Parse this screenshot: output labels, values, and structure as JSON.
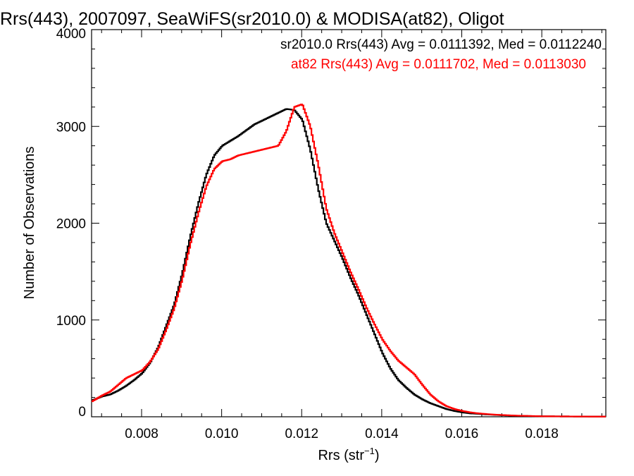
{
  "chart_data": {
    "type": "line",
    "title": "Rrs(443), 2007097, SeaWiFS(sr2010.0) & MODISA(at82), Oligot",
    "xlabel": "Rrs (str",
    "xlabel_superscript": "−1",
    "xlabel_suffix": ")",
    "ylabel": "Number of Observations",
    "xlim": [
      0.00675,
      0.0196
    ],
    "ylim": [
      0,
      4000
    ],
    "x_ticks": [
      0.008,
      0.01,
      0.012,
      0.014,
      0.016,
      0.018
    ],
    "x_tick_labels": [
      "0.008",
      "0.010",
      "0.012",
      "0.014",
      "0.016",
      "0.018"
    ],
    "y_ticks": [
      0,
      1000,
      2000,
      3000,
      4000
    ],
    "y_tick_labels": [
      "0",
      "1000",
      "2000",
      "3000",
      "4000"
    ],
    "grid": false,
    "legend_position": "top-right",
    "series": [
      {
        "name": "sr2010.0 Rrs(443) Avg = 0.0111392, Med = 0.0112240",
        "color": "#000000",
        "points": [
          [
            0.00675,
            170
          ],
          [
            0.007,
            210
          ],
          [
            0.0072,
            230
          ],
          [
            0.0074,
            270
          ],
          [
            0.0076,
            320
          ],
          [
            0.0078,
            380
          ],
          [
            0.008,
            450
          ],
          [
            0.0082,
            560
          ],
          [
            0.0084,
            720
          ],
          [
            0.0086,
            940
          ],
          [
            0.0088,
            1160
          ],
          [
            0.009,
            1480
          ],
          [
            0.0092,
            1860
          ],
          [
            0.0094,
            2200
          ],
          [
            0.0096,
            2500
          ],
          [
            0.0098,
            2700
          ],
          [
            0.01,
            2800
          ],
          [
            0.0102,
            2850
          ],
          [
            0.0104,
            2900
          ],
          [
            0.0106,
            2960
          ],
          [
            0.0108,
            3020
          ],
          [
            0.011,
            3060
          ],
          [
            0.0112,
            3100
          ],
          [
            0.0114,
            3140
          ],
          [
            0.0116,
            3180
          ],
          [
            0.0118,
            3170
          ],
          [
            0.012,
            3070
          ],
          [
            0.0122,
            2760
          ],
          [
            0.0124,
            2350
          ],
          [
            0.0126,
            2000
          ],
          [
            0.0128,
            1820
          ],
          [
            0.013,
            1640
          ],
          [
            0.0132,
            1440
          ],
          [
            0.0134,
            1260
          ],
          [
            0.0136,
            1060
          ],
          [
            0.0138,
            860
          ],
          [
            0.014,
            660
          ],
          [
            0.0142,
            500
          ],
          [
            0.0144,
            380
          ],
          [
            0.0146,
            300
          ],
          [
            0.0148,
            230
          ],
          [
            0.015,
            180
          ],
          [
            0.0152,
            140
          ],
          [
            0.0154,
            110
          ],
          [
            0.0156,
            80
          ],
          [
            0.0158,
            60
          ],
          [
            0.016,
            45
          ],
          [
            0.0162,
            35
          ],
          [
            0.0164,
            30
          ],
          [
            0.0166,
            25
          ],
          [
            0.0168,
            20
          ],
          [
            0.017,
            16
          ],
          [
            0.0172,
            12
          ],
          [
            0.0174,
            10
          ],
          [
            0.0176,
            8
          ],
          [
            0.0178,
            6
          ],
          [
            0.018,
            5
          ],
          [
            0.0184,
            4
          ],
          [
            0.0188,
            3
          ],
          [
            0.0192,
            2
          ],
          [
            0.0196,
            2
          ]
        ]
      },
      {
        "name": "at82 Rrs(443) Avg = 0.0111702, Med = 0.0113030",
        "color": "#ff0000",
        "points": [
          [
            0.00675,
            160
          ],
          [
            0.007,
            220
          ],
          [
            0.0072,
            260
          ],
          [
            0.0074,
            330
          ],
          [
            0.0076,
            400
          ],
          [
            0.0078,
            440
          ],
          [
            0.008,
            480
          ],
          [
            0.0082,
            570
          ],
          [
            0.0084,
            700
          ],
          [
            0.0086,
            900
          ],
          [
            0.0088,
            1120
          ],
          [
            0.009,
            1420
          ],
          [
            0.0092,
            1780
          ],
          [
            0.0094,
            2100
          ],
          [
            0.0096,
            2380
          ],
          [
            0.0098,
            2560
          ],
          [
            0.01,
            2640
          ],
          [
            0.0102,
            2660
          ],
          [
            0.0104,
            2700
          ],
          [
            0.0106,
            2720
          ],
          [
            0.0108,
            2740
          ],
          [
            0.011,
            2760
          ],
          [
            0.0112,
            2780
          ],
          [
            0.0114,
            2800
          ],
          [
            0.0116,
            2950
          ],
          [
            0.0118,
            3200
          ],
          [
            0.012,
            3230
          ],
          [
            0.0122,
            3000
          ],
          [
            0.0124,
            2600
          ],
          [
            0.0126,
            2150
          ],
          [
            0.0128,
            1900
          ],
          [
            0.013,
            1700
          ],
          [
            0.0132,
            1500
          ],
          [
            0.0134,
            1320
          ],
          [
            0.0136,
            1130
          ],
          [
            0.0138,
            960
          ],
          [
            0.014,
            800
          ],
          [
            0.0142,
            680
          ],
          [
            0.0144,
            580
          ],
          [
            0.0146,
            510
          ],
          [
            0.0148,
            440
          ],
          [
            0.015,
            330
          ],
          [
            0.0152,
            230
          ],
          [
            0.0154,
            160
          ],
          [
            0.0156,
            110
          ],
          [
            0.0158,
            80
          ],
          [
            0.016,
            60
          ],
          [
            0.0162,
            45
          ],
          [
            0.0164,
            35
          ],
          [
            0.0166,
            28
          ],
          [
            0.0168,
            22
          ],
          [
            0.017,
            18
          ],
          [
            0.0172,
            14
          ],
          [
            0.0174,
            11
          ],
          [
            0.0176,
            9
          ],
          [
            0.0178,
            7
          ],
          [
            0.018,
            5
          ],
          [
            0.0184,
            4
          ],
          [
            0.0188,
            3
          ],
          [
            0.0192,
            2
          ],
          [
            0.0196,
            2
          ]
        ]
      }
    ]
  }
}
